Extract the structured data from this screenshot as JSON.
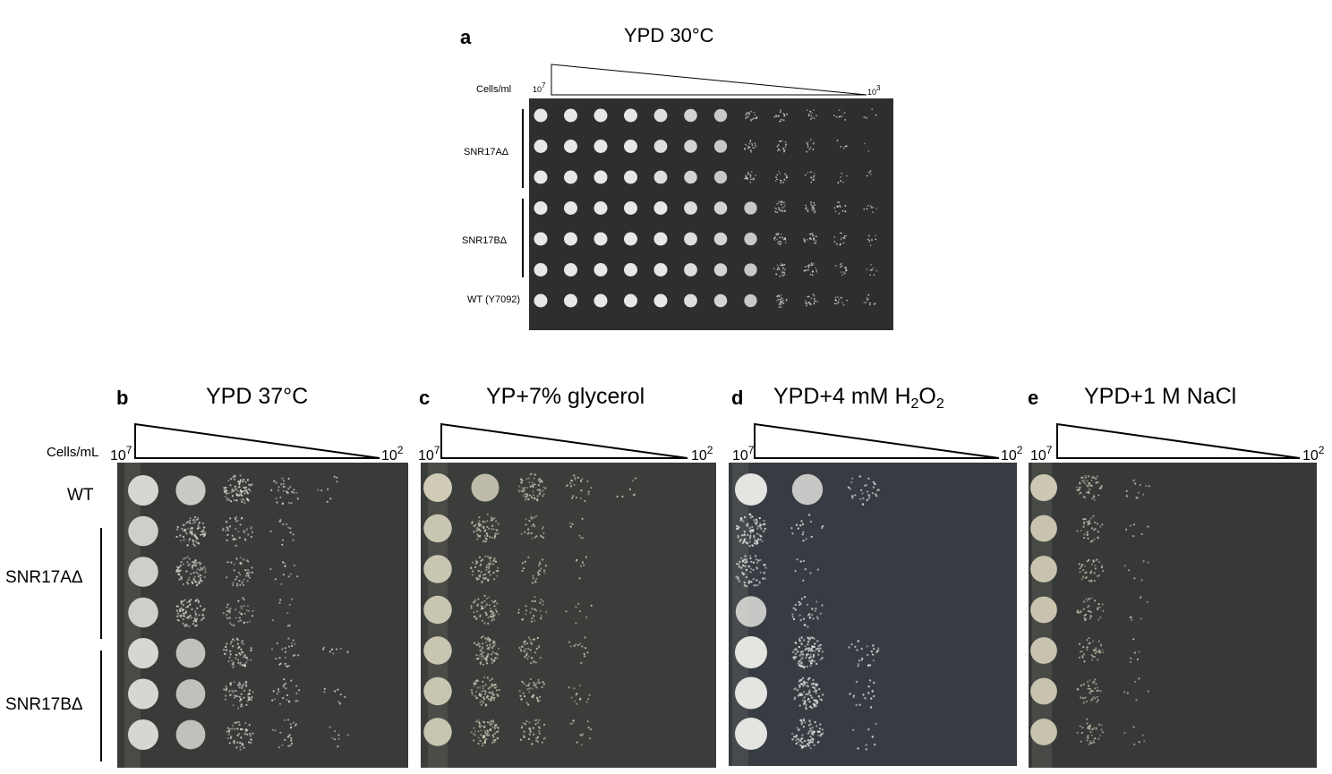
{
  "panel_a": {
    "letter": "a",
    "title": "YPD 30°C",
    "axis_label": "Cells/ml",
    "conc_high_base": "10",
    "conc_high_exp": "7",
    "conc_low_base": "10",
    "conc_low_exp": "3",
    "groups": [
      "SNR17AΔ",
      "SNR17BΔ"
    ],
    "wt_label": "WT (Y7092)",
    "plate_color": "#2e2e2e",
    "rows": [
      [
        1,
        1,
        1,
        1,
        0.9,
        0.8,
        0.7,
        0.5,
        0.4,
        0.3,
        0.2,
        0.1
      ],
      [
        1,
        1,
        1,
        1,
        0.9,
        0.8,
        0.7,
        0.5,
        0.4,
        0.3,
        0.15,
        0.05
      ],
      [
        1,
        1,
        1,
        1,
        0.9,
        0.8,
        0.7,
        0.5,
        0.4,
        0.3,
        0.15,
        0.1
      ],
      [
        1,
        1,
        1,
        1,
        1,
        0.9,
        0.8,
        0.7,
        0.6,
        0.5,
        0.35,
        0.2
      ],
      [
        1,
        1,
        1,
        1,
        1,
        0.9,
        0.8,
        0.7,
        0.6,
        0.5,
        0.35,
        0.2
      ],
      [
        1,
        1,
        1,
        1,
        1,
        0.9,
        0.8,
        0.7,
        0.6,
        0.5,
        0.35,
        0.2
      ],
      [
        1,
        1,
        1,
        1,
        1,
        0.9,
        0.8,
        0.7,
        0.6,
        0.5,
        0.35,
        0.25
      ]
    ]
  },
  "left_labels": {
    "axis_label": "Cells/mL",
    "wt": "WT",
    "group_a": "SNR17AΔ",
    "group_b": "SNR17BΔ"
  },
  "panels": [
    {
      "letter": "b",
      "title": "YPD 37°C",
      "conc_high_base": "10",
      "conc_high_exp": "7",
      "conc_low_base": "10",
      "conc_low_exp": "2",
      "plate_color": "#3a3b39",
      "spot_color": "#d6d6d2",
      "rows": [
        [
          1,
          0.85,
          0.6,
          0.2,
          0.05
        ],
        [
          0.9,
          0.55,
          0.25,
          0.08,
          0
        ],
        [
          0.9,
          0.55,
          0.25,
          0.08,
          0
        ],
        [
          0.9,
          0.55,
          0.25,
          0.05,
          0
        ],
        [
          1,
          0.75,
          0.4,
          0.15,
          0.05
        ],
        [
          1,
          0.75,
          0.4,
          0.15,
          0.05
        ],
        [
          1,
          0.75,
          0.35,
          0.15,
          0.05
        ]
      ]
    },
    {
      "letter": "c",
      "title": "YP+7% glycerol",
      "conc_high_base": "10",
      "conc_high_exp": "7",
      "conc_low_base": "10",
      "conc_low_exp": "2",
      "plate_color": "#3b3d3a",
      "spot_color": "#cfcbb7",
      "rows": [
        [
          1,
          0.8,
          0.5,
          0.2,
          0.05
        ],
        [
          0.9,
          0.5,
          0.2,
          0.05,
          0
        ],
        [
          0.9,
          0.5,
          0.2,
          0.05,
          0
        ],
        [
          0.9,
          0.5,
          0.2,
          0.05,
          0
        ],
        [
          0.9,
          0.6,
          0.3,
          0.1,
          0
        ],
        [
          0.9,
          0.6,
          0.3,
          0.1,
          0
        ],
        [
          0.9,
          0.6,
          0.3,
          0.1,
          0
        ]
      ]
    },
    {
      "letter": "d",
      "title_prefix": "YPD+4 mM H",
      "title_sub1": "2",
      "title_mid": "O",
      "title_sub2": "2",
      "conc_high_base": "10",
      "conc_high_exp": "7",
      "conc_low_base": "10",
      "conc_low_exp": "2",
      "plate_color": "#373b42",
      "spot_color": "#e4e4e0",
      "rows": [
        [
          1,
          0.7,
          0.2,
          0,
          0
        ],
        [
          0.55,
          0.1,
          0,
          0,
          0
        ],
        [
          0.4,
          0.05,
          0,
          0,
          0
        ],
        [
          0.7,
          0.2,
          0,
          0,
          0
        ],
        [
          1,
          0.6,
          0.15,
          0,
          0
        ],
        [
          1,
          0.55,
          0.1,
          0,
          0
        ],
        [
          1,
          0.5,
          0.05,
          0,
          0
        ]
      ]
    },
    {
      "letter": "e",
      "title": "YPD+1 M NaCl",
      "conc_high_base": "10",
      "conc_high_exp": "7",
      "conc_low_base": "10",
      "conc_low_exp": "2",
      "plate_color": "#363938",
      "spot_color": "#ccc7b2",
      "rows": [
        [
          1,
          0.45,
          0.1,
          0,
          0
        ],
        [
          0.95,
          0.3,
          0.05,
          0,
          0
        ],
        [
          0.95,
          0.3,
          0.05,
          0,
          0
        ],
        [
          0.95,
          0.3,
          0.05,
          0,
          0
        ],
        [
          0.95,
          0.3,
          0.05,
          0,
          0
        ],
        [
          0.95,
          0.3,
          0.05,
          0,
          0
        ],
        [
          0.95,
          0.3,
          0.05,
          0,
          0
        ]
      ]
    }
  ]
}
